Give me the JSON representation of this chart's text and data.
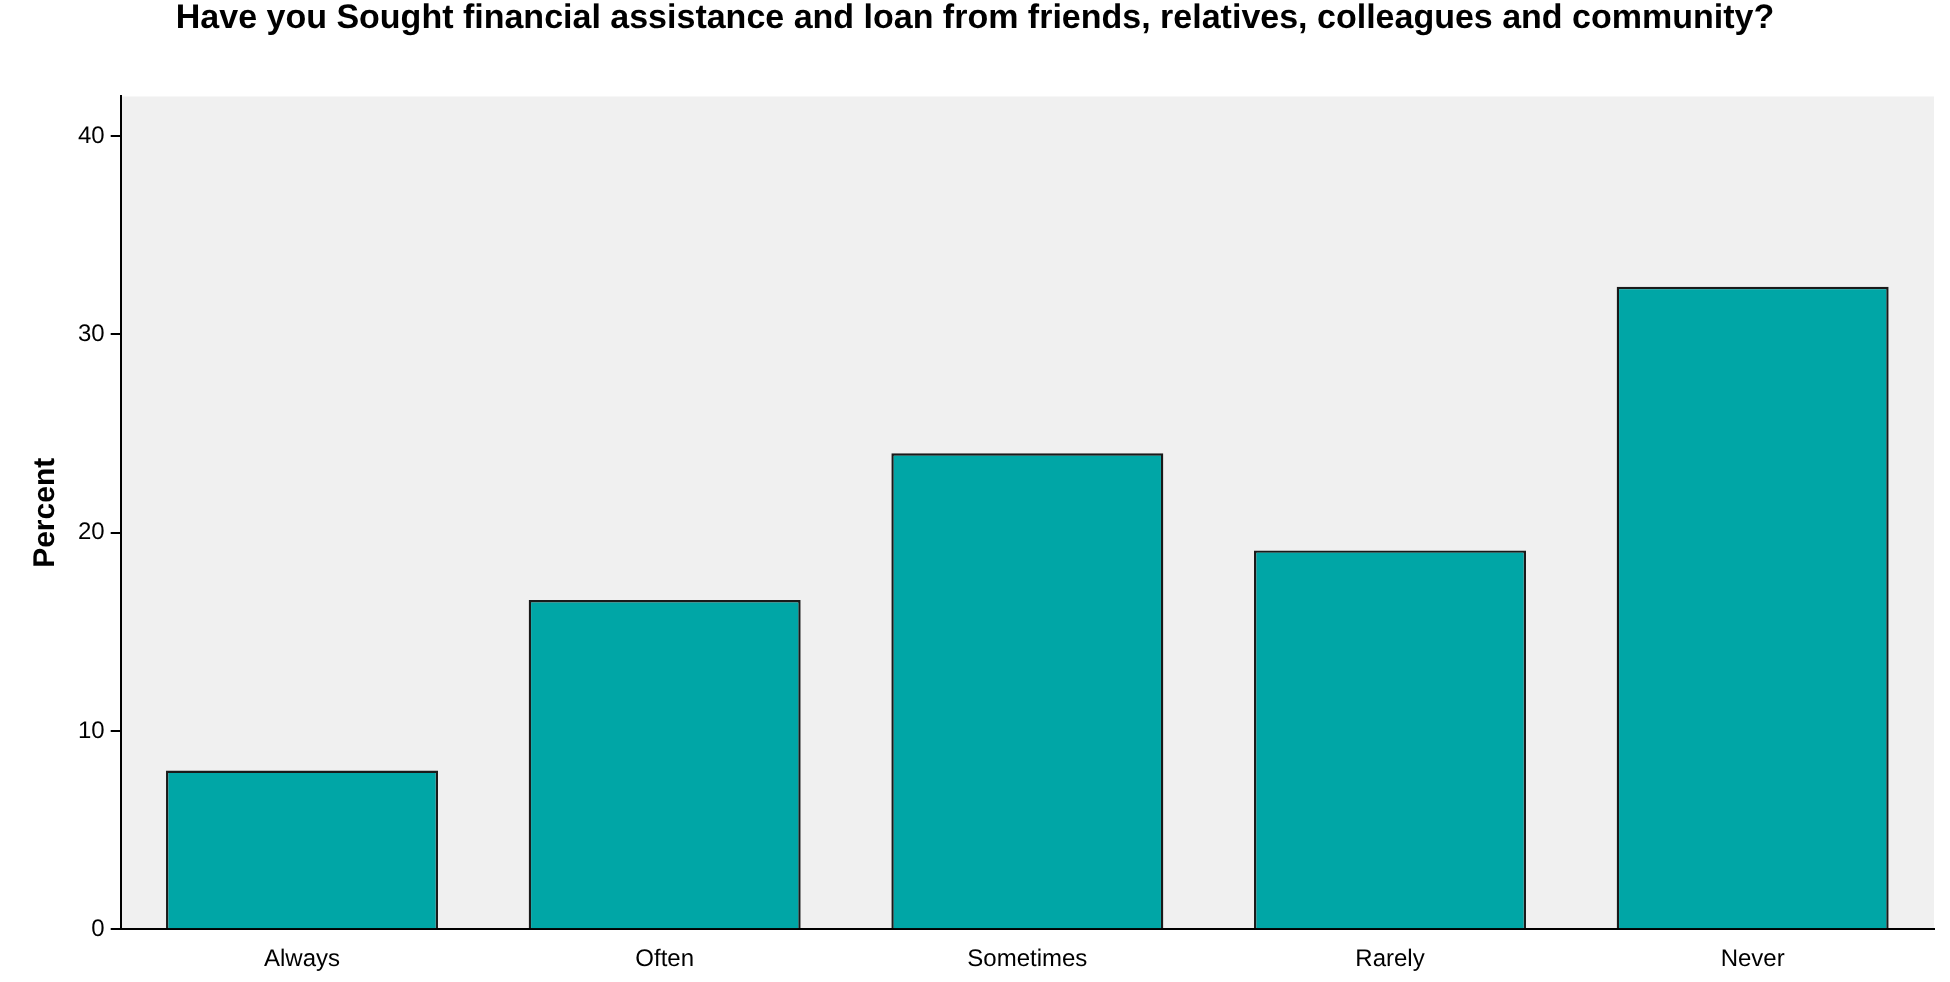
{
  "chart_data": {
    "type": "bar",
    "title": "Have you Sought financial assistance and loan from friends, relatives, colleagues and community?",
    "ylabel": "Percent",
    "categories": [
      "Always",
      "Often",
      "Sometimes",
      "Rarely",
      "Never"
    ],
    "values": [
      8.0,
      16.6,
      24.0,
      19.1,
      32.4
    ],
    "color": "#00a6a6",
    "ylim": [
      0,
      42
    ],
    "yticks": [
      0,
      10,
      20,
      30,
      40
    ],
    "grid": false,
    "legend": false
  }
}
